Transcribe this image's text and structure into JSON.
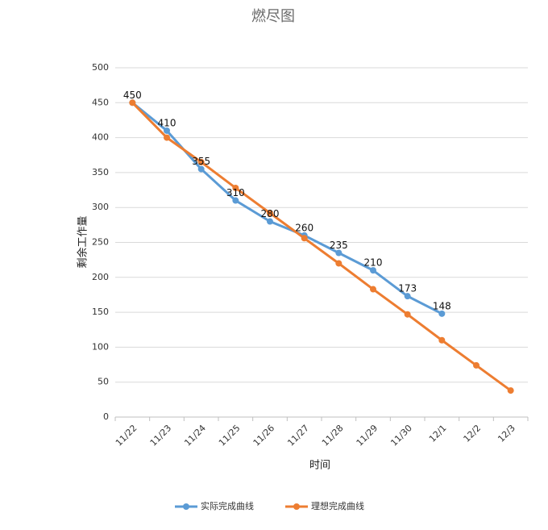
{
  "chart_data": {
    "type": "line",
    "title": "燃尽图",
    "x_label": "时间",
    "y_label": "剩余工作量",
    "categories": [
      "11/22",
      "11/23",
      "11/24",
      "11/25",
      "11/26",
      "11/27",
      "11/28",
      "11/29",
      "11/30",
      "12/1",
      "12/2",
      "12/3"
    ],
    "series": [
      {
        "name": "实际完成曲线",
        "color": "#5b9bd5",
        "values": [
          450,
          410,
          355,
          310,
          280,
          260,
          235,
          210,
          173,
          148,
          null,
          null
        ]
      },
      {
        "name": "理想完成曲线",
        "color": "#ed7d31",
        "values": [
          450,
          400,
          365,
          328,
          292,
          256,
          220,
          183,
          147,
          110,
          74,
          38
        ]
      }
    ],
    "data_labels_series": "实际完成曲线",
    "ylim": [
      0,
      500
    ],
    "yticks": [
      0,
      50,
      100,
      150,
      200,
      250,
      300,
      350,
      400,
      450,
      500
    ],
    "grid": true,
    "legend": "bottom"
  }
}
